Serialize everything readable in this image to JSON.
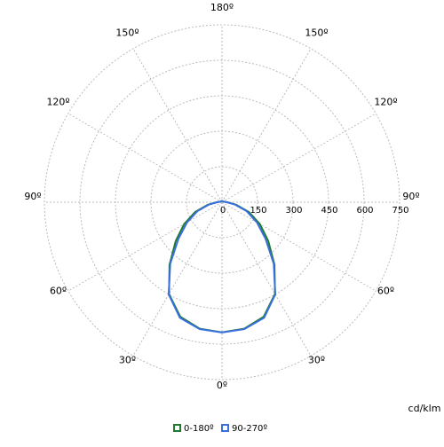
{
  "chart_data": {
    "type": "polar",
    "angles": [
      0,
      10,
      20,
      30,
      40,
      50,
      60,
      70,
      80,
      90,
      100,
      110,
      120,
      130,
      140,
      150,
      160,
      170,
      180
    ],
    "series": [
      {
        "name": "0-180º",
        "color": "#1e7a2e",
        "values": [
          550,
          543,
          515,
          448,
          345,
          255,
          185,
          120,
          60,
          22,
          10,
          8,
          6,
          5,
          5,
          5,
          5,
          5,
          5
        ]
      },
      {
        "name": "90-270º",
        "color": "#3a6fe0",
        "values": [
          551,
          545,
          520,
          450,
          340,
          240,
          170,
          110,
          55,
          20,
          10,
          8,
          6,
          5,
          5,
          5,
          5,
          5,
          5
        ]
      }
    ],
    "rlim": [
      0,
      750
    ],
    "rticks": [
      0,
      150,
      300,
      450,
      600,
      750
    ],
    "angleticks": [
      {
        "value": 0,
        "label": "0º"
      },
      {
        "value": 30,
        "label": "30º"
      },
      {
        "value": 60,
        "label": "60º"
      },
      {
        "value": 90,
        "label": "90º"
      },
      {
        "value": 120,
        "label": "120º"
      },
      {
        "value": 150,
        "label": "150º"
      },
      {
        "value": 180,
        "label": "180º"
      }
    ],
    "unit_label": "cd/klm",
    "grid": true
  }
}
